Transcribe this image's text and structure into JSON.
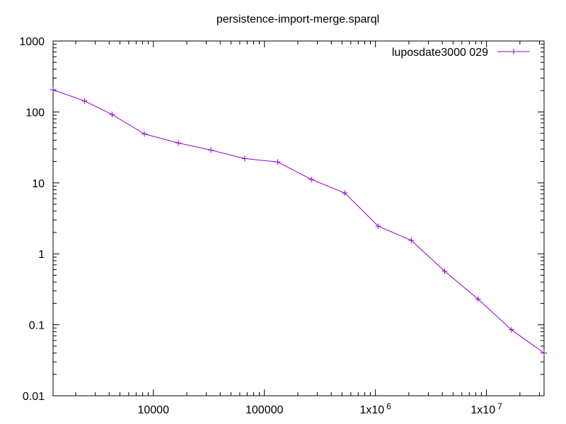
{
  "chart_data": {
    "type": "line",
    "title": "persistence-import-merge.sparql",
    "xlabel": "",
    "ylabel": "",
    "x_scale": "log",
    "y_scale": "log",
    "xlim": [
      1250,
      33000000
    ],
    "ylim": [
      0.01,
      1000
    ],
    "grid": false,
    "legend_position": "top-right",
    "x_ticks": [
      {
        "value": 10000,
        "label": "10000"
      },
      {
        "value": 100000,
        "label": "100000"
      },
      {
        "value": 1000000,
        "label": "1x10",
        "exp": "6"
      },
      {
        "value": 10000000,
        "label": "1x10",
        "exp": "7"
      }
    ],
    "y_ticks": [
      {
        "value": 1000,
        "label": "1000"
      },
      {
        "value": 100,
        "label": "100"
      },
      {
        "value": 10,
        "label": "10"
      },
      {
        "value": 1,
        "label": "1"
      },
      {
        "value": 0.1,
        "label": "0.1"
      },
      {
        "value": 0.01,
        "label": "0.01"
      }
    ],
    "series": [
      {
        "name": "luposdate3000 029",
        "color": "#9400d3",
        "marker": "plus",
        "x": [
          1250,
          2400,
          4250,
          8300,
          16800,
          33000,
          66500,
          132000,
          265000,
          530000,
          1060000,
          2100000,
          4200000,
          8400000,
          16800000,
          33000000
        ],
        "y": [
          205,
          143,
          92,
          49,
          36.5,
          29,
          22,
          19.7,
          11.2,
          7.2,
          2.45,
          1.55,
          0.57,
          0.23,
          0.085,
          0.04
        ]
      }
    ]
  }
}
